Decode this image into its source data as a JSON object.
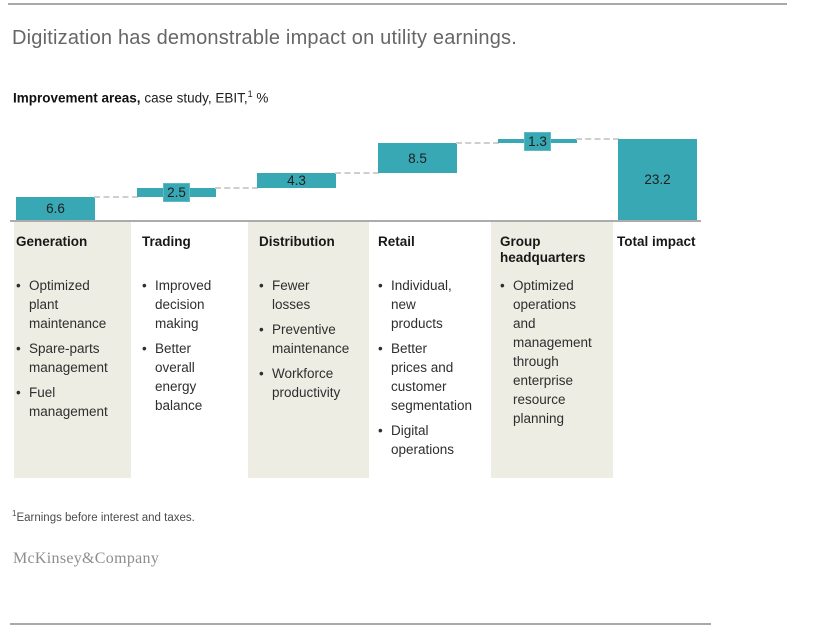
{
  "header": {
    "title": "Digitization has demonstrable impact on utility earnings."
  },
  "subtitle": {
    "bold": "Improvement areas,",
    "regular": " case study, EBIT,",
    "superscript": "1",
    "suffix": " %"
  },
  "chart_data": {
    "type": "bar",
    "subtype": "waterfall",
    "title": "Improvement areas, case study, EBIT, %",
    "categories": [
      "Generation",
      "Trading",
      "Distribution",
      "Retail",
      "Group headquarters",
      "Total impact"
    ],
    "values": [
      6.6,
      2.5,
      4.3,
      8.5,
      1.3,
      23.2
    ],
    "value_labels": [
      "6.6",
      "2.5",
      "4.3",
      "8.5",
      "1.3",
      "23.2"
    ],
    "segments": [
      {
        "label": "Generation",
        "value": 6.6,
        "start": 0,
        "end": 6.6,
        "kind": "increase"
      },
      {
        "label": "Trading",
        "value": 2.5,
        "start": 6.6,
        "end": 9.1,
        "kind": "increase"
      },
      {
        "label": "Distribution",
        "value": 4.3,
        "start": 9.1,
        "end": 13.4,
        "kind": "increase"
      },
      {
        "label": "Retail",
        "value": 8.5,
        "start": 13.4,
        "end": 21.9,
        "kind": "increase"
      },
      {
        "label": "Group headquarters",
        "value": 1.3,
        "start": 21.9,
        "end": 23.2,
        "kind": "increase"
      },
      {
        "label": "Total impact",
        "value": 23.2,
        "start": 0,
        "end": 23.2,
        "kind": "total"
      }
    ],
    "ylim": [
      0,
      23.2
    ],
    "bar_color": "#38a8b4",
    "connector_color": "#cfcfcf",
    "baseline_color": "#acacac",
    "legend": "none",
    "grid": "off"
  },
  "bullet_marker": "•",
  "columns": [
    {
      "header_lines": [
        "Generation"
      ],
      "shaded": true,
      "bullets": [
        {
          "lines": [
            "Optimized",
            "plant",
            "maintenance"
          ]
        },
        {
          "lines": [
            "Spare-parts",
            "management"
          ]
        },
        {
          "lines": [
            "Fuel",
            "management"
          ]
        }
      ]
    },
    {
      "header_lines": [
        "Trading"
      ],
      "shaded": false,
      "bullets": [
        {
          "lines": [
            "Improved",
            "decision",
            "making"
          ]
        },
        {
          "lines": [
            "Better",
            "overall",
            "energy",
            "balance"
          ]
        }
      ]
    },
    {
      "header_lines": [
        "Distribution"
      ],
      "shaded": true,
      "bullets": [
        {
          "lines": [
            "Fewer",
            "losses"
          ]
        },
        {
          "lines": [
            "Preventive",
            "maintenance"
          ]
        },
        {
          "lines": [
            "Workforce",
            "productivity"
          ]
        }
      ]
    },
    {
      "header_lines": [
        "Retail"
      ],
      "shaded": false,
      "bullets": [
        {
          "lines": [
            "Individual,",
            "new",
            "products"
          ]
        },
        {
          "lines": [
            "Better",
            "prices and",
            "customer",
            "segmentation"
          ]
        },
        {
          "lines": [
            "Digital",
            "operations"
          ]
        }
      ]
    },
    {
      "header_lines": [
        "Group",
        "headquarters"
      ],
      "shaded": true,
      "bullets": [
        {
          "lines": [
            "Optimized",
            "operations",
            "and",
            "management",
            "through",
            "enterprise",
            "resource",
            "planning"
          ]
        }
      ]
    },
    {
      "header_lines": [
        "Total impact"
      ],
      "shaded": false,
      "bullets": []
    }
  ],
  "footnote": {
    "superscript": "1",
    "text": "Earnings before interest and taxes."
  },
  "logo": "McKinsey&Company"
}
